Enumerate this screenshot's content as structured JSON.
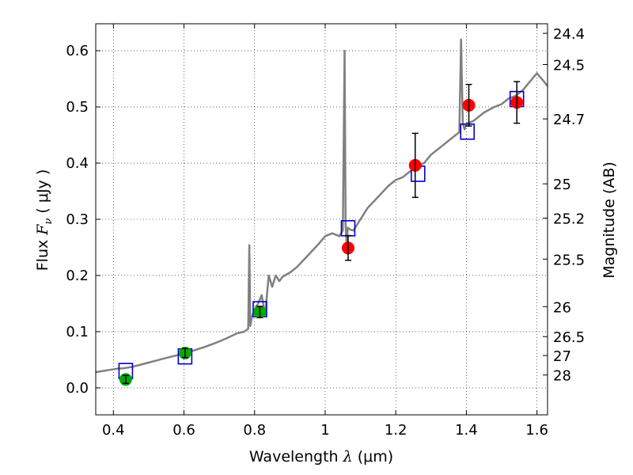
{
  "chart_data": {
    "type": "scatter",
    "xlabel": {
      "prefix": "Wavelength  ",
      "symbol": "λ",
      "unit": " (μm)"
    },
    "ylabel": {
      "prefix": "Flux  ",
      "symbol": "F",
      "sub": "ν",
      "unit": "  ( μJy )"
    },
    "y2label": "Magnitude (AB)",
    "xlim": [
      0.35,
      1.63
    ],
    "ylim": [
      -0.048,
      0.648
    ],
    "x_ticks": [
      0.4,
      0.6,
      0.8,
      1.0,
      1.2,
      1.4,
      1.6
    ],
    "x_tick_labels": [
      "0.4",
      "0.6",
      "0.8",
      "1",
      "1.2",
      "1.4",
      "1.6"
    ],
    "y_ticks": [
      0.0,
      0.1,
      0.2,
      0.3,
      0.4,
      0.5,
      0.6
    ],
    "y_tick_labels": [
      "0.0",
      "0.1",
      "0.2",
      "0.3",
      "0.4",
      "0.5",
      "0.6"
    ],
    "y2_tick_labels": [
      "24.4",
      "24.5",
      "24.7",
      "25",
      "25.2",
      "25.5",
      "26",
      "26.5",
      "27",
      "28"
    ],
    "grid": true,
    "series": [
      {
        "kind": "spectrum_line",
        "color": "#808080",
        "x": [
          0.35,
          0.37,
          0.39,
          0.41,
          0.43,
          0.45,
          0.47,
          0.5,
          0.53,
          0.56,
          0.6,
          0.63,
          0.66,
          0.69,
          0.72,
          0.75,
          0.77,
          0.782,
          0.785,
          0.788,
          0.792,
          0.8,
          0.81,
          0.82,
          0.83,
          0.84,
          0.85,
          0.86,
          0.87,
          0.88,
          0.9,
          0.92,
          0.95,
          0.98,
          1.0,
          1.02,
          1.04,
          1.05,
          1.055,
          1.058,
          1.061,
          1.064,
          1.07,
          1.08,
          1.1,
          1.12,
          1.15,
          1.18,
          1.2,
          1.22,
          1.25,
          1.28,
          1.3,
          1.32,
          1.35,
          1.37,
          1.38,
          1.385,
          1.39,
          1.395,
          1.4,
          1.42,
          1.45,
          1.48,
          1.5,
          1.52,
          1.54,
          1.56,
          1.58,
          1.6,
          1.62,
          1.63
        ],
        "y": [
          0.028,
          0.03,
          0.032,
          0.034,
          0.035,
          0.037,
          0.04,
          0.045,
          0.05,
          0.055,
          0.061,
          0.067,
          0.073,
          0.08,
          0.088,
          0.097,
          0.1,
          0.105,
          0.254,
          0.11,
          0.125,
          0.14,
          0.15,
          0.165,
          0.13,
          0.2,
          0.18,
          0.2,
          0.19,
          0.198,
          0.205,
          0.215,
          0.235,
          0.255,
          0.27,
          0.275,
          0.27,
          0.28,
          0.6,
          0.29,
          0.25,
          0.285,
          0.282,
          0.28,
          0.3,
          0.32,
          0.34,
          0.36,
          0.37,
          0.375,
          0.39,
          0.4,
          0.415,
          0.425,
          0.44,
          0.45,
          0.455,
          0.62,
          0.47,
          0.46,
          0.47,
          0.475,
          0.49,
          0.5,
          0.505,
          0.515,
          0.52,
          0.53,
          0.545,
          0.56,
          0.545,
          0.537
        ]
      },
      {
        "kind": "model_boxes",
        "color": "#0000cc",
        "x": [
          0.435,
          0.603,
          0.815,
          1.065,
          1.263,
          1.403,
          1.543
        ],
        "y": [
          0.03,
          0.056,
          0.14,
          0.284,
          0.381,
          0.456,
          0.514
        ]
      },
      {
        "kind": "observed_points",
        "x": [
          0.435,
          0.603,
          0.815,
          1.065,
          1.255,
          1.407,
          1.543
        ],
        "y": [
          0.015,
          0.062,
          0.135,
          0.249,
          0.396,
          0.503,
          0.508
        ],
        "yerr": [
          0.007,
          0.008,
          0.01,
          0.022,
          0.057,
          0.037,
          0.037
        ],
        "colors": [
          "#00aa00",
          "#00aa00",
          "#00aa00",
          "#ff0000",
          "#ff0000",
          "#ff0000",
          "#ff0000"
        ]
      }
    ]
  }
}
